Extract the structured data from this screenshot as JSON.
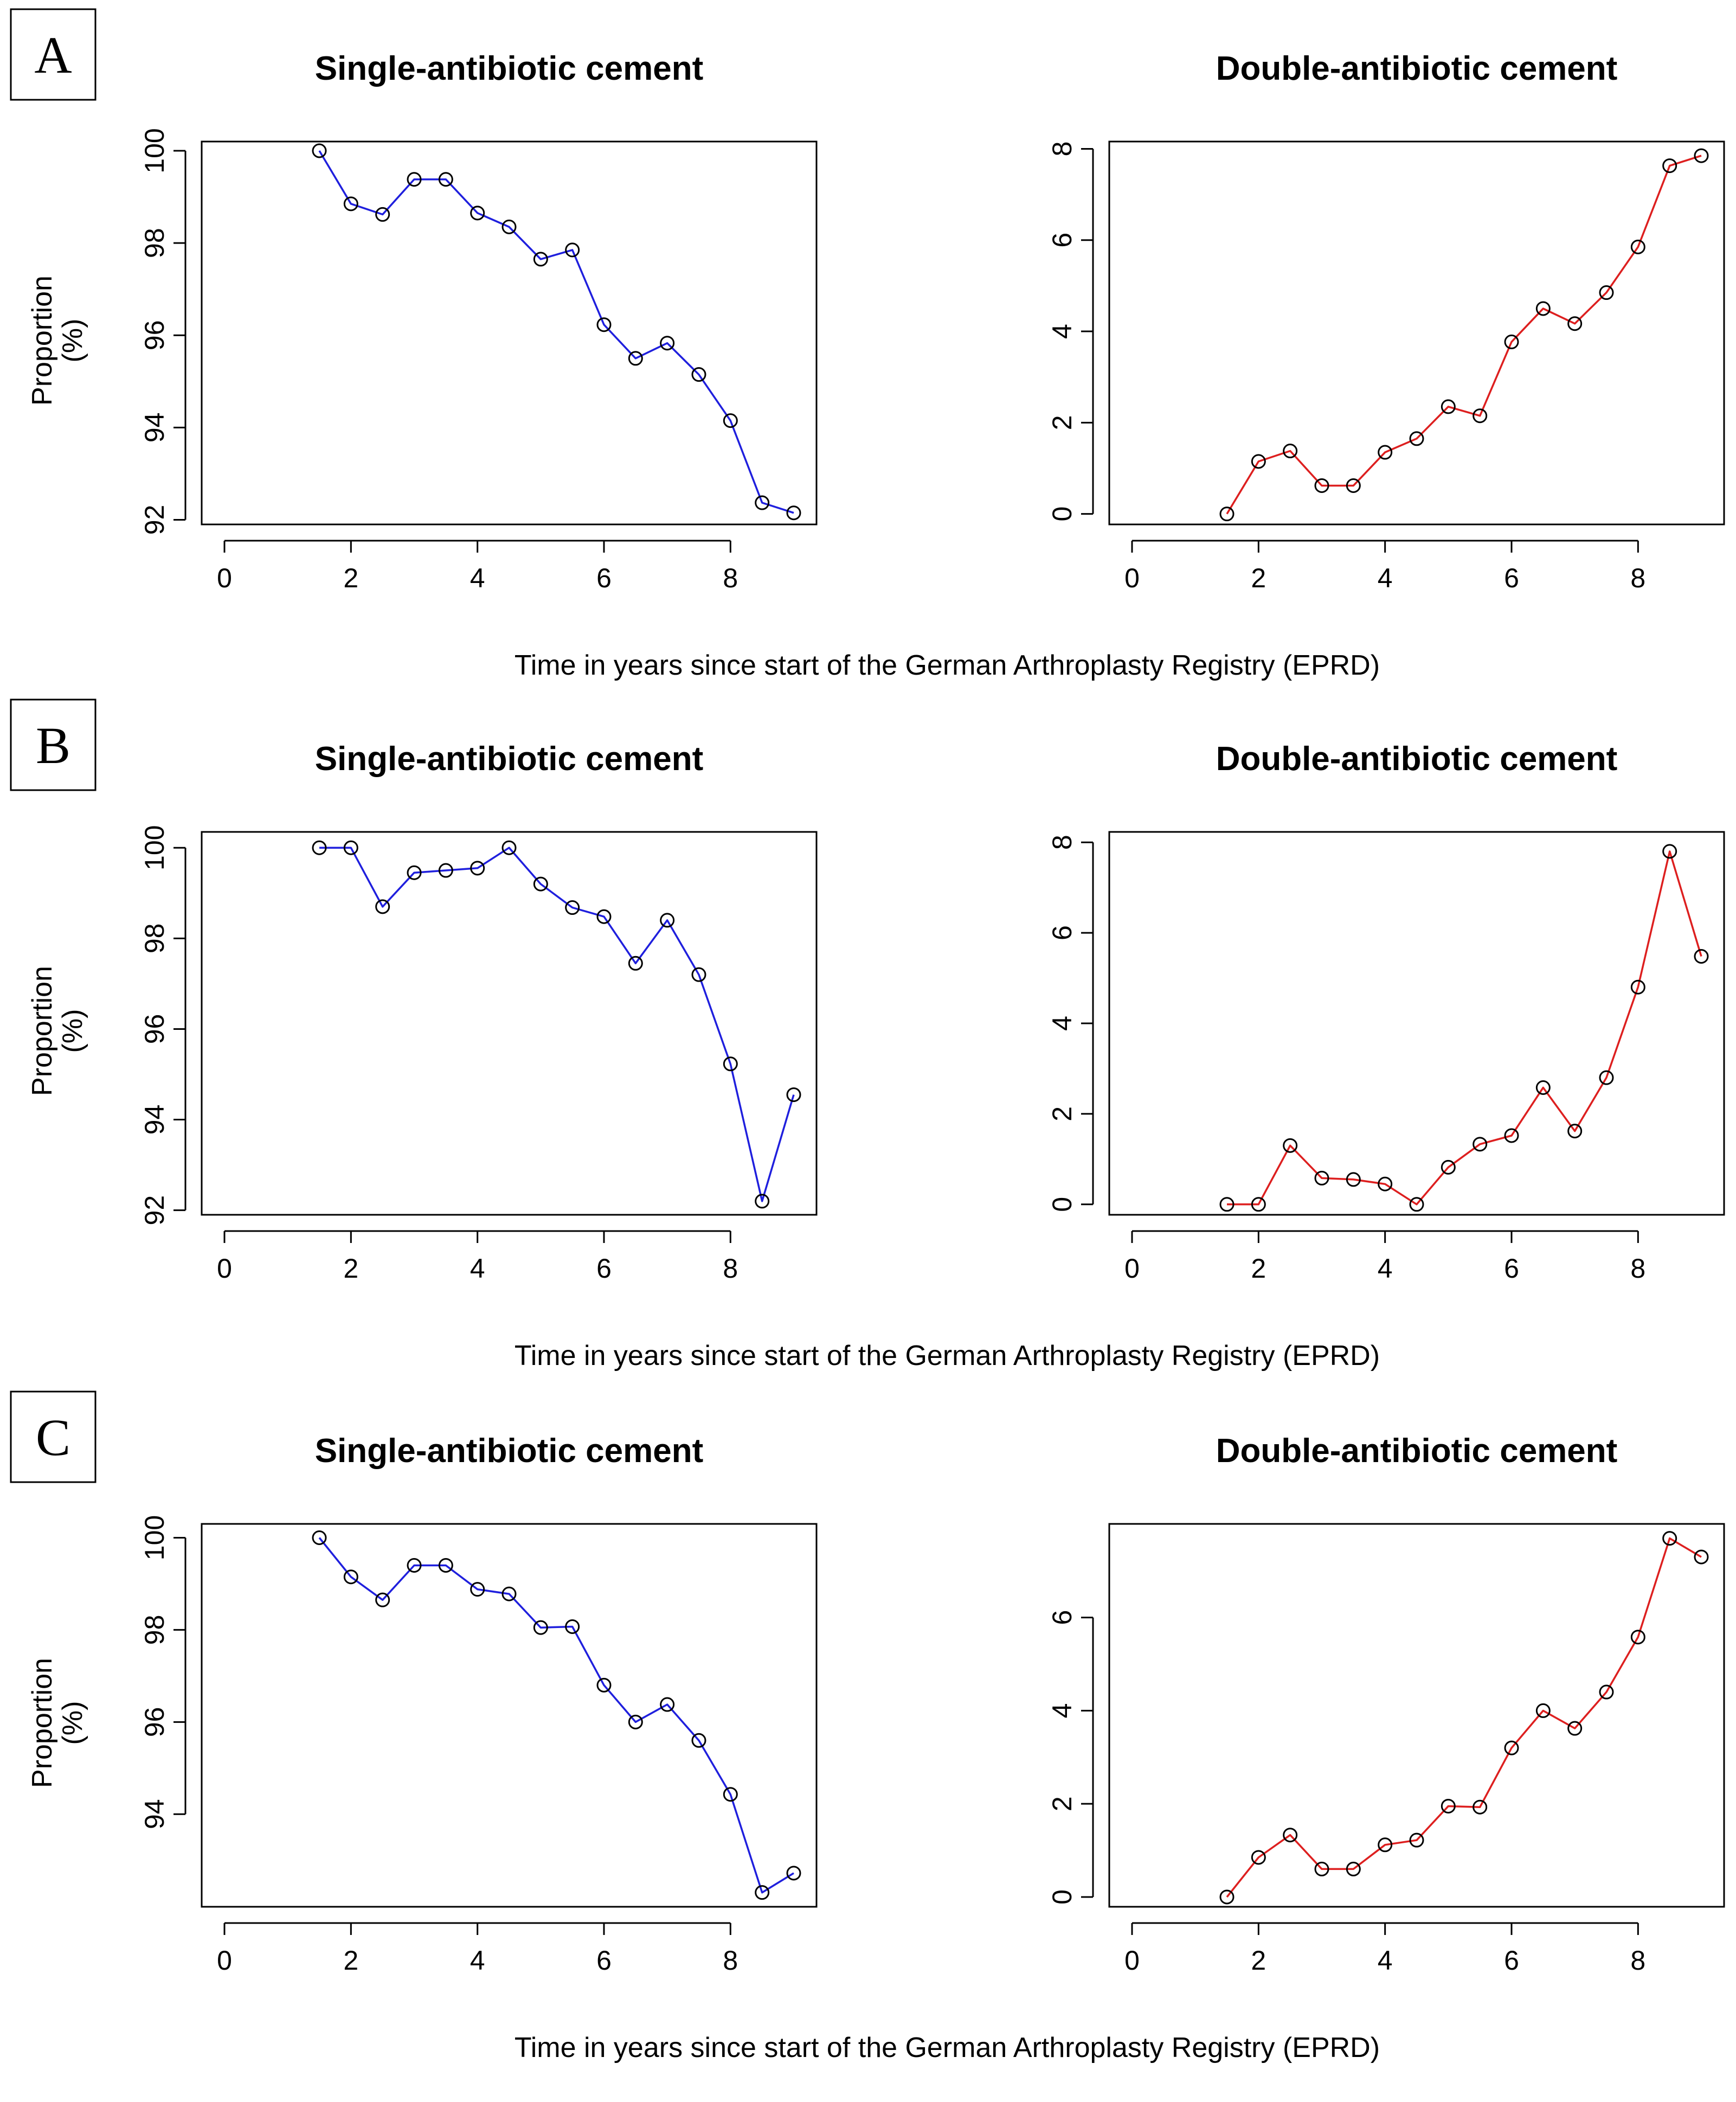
{
  "panels": [
    {
      "letter": "A",
      "xlabel": "Time in years since start of the German Arthroplasty Registry (EPRD)",
      "ylabel_line1": "Proportion",
      "ylabel_line2": "(%)"
    },
    {
      "letter": "B",
      "xlabel": "Time in years since start of the German Arthroplasty Registry (EPRD)",
      "ylabel_line1": "Proportion",
      "ylabel_line2": "(%)"
    },
    {
      "letter": "C",
      "xlabel": "Time in years since start of the German Arthroplasty Registry (EPRD)",
      "ylabel_line1": "Proportion",
      "ylabel_line2": "(%)"
    }
  ],
  "chart_data": [
    {
      "panel": "A",
      "type": "line",
      "title": "Single-antibiotic cement",
      "xlabel": "Time in years since start of the German Arthroplasty Registry (EPRD)",
      "ylabel": "Proportion (%)",
      "color": "#1f1fdd",
      "marker": "open-circle",
      "grid": false,
      "x": [
        1.5,
        2,
        2.5,
        3,
        3.5,
        4,
        4.5,
        5,
        5.5,
        6,
        6.5,
        7,
        7.5,
        8,
        8.5,
        9
      ],
      "y": [
        100.0,
        98.85,
        98.62,
        99.38,
        99.38,
        98.65,
        98.35,
        97.65,
        97.85,
        96.23,
        95.5,
        95.83,
        95.15,
        94.15,
        92.37,
        92.15
      ],
      "xlim": [
        -0.36,
        9.36
      ],
      "ylim": [
        91.9,
        100.2
      ],
      "xticks": [
        0,
        2,
        4,
        6,
        8
      ],
      "yticks": [
        92,
        94,
        96,
        98,
        100
      ]
    },
    {
      "panel": "A",
      "type": "line",
      "title": "Double-antibiotic cement",
      "xlabel": "Time in years since start of the German Arthroplasty Registry (EPRD)",
      "ylabel": "",
      "color": "#dd1f1f",
      "marker": "open-circle",
      "grid": false,
      "x": [
        1.5,
        2,
        2.5,
        3,
        3.5,
        4,
        4.5,
        5,
        5.5,
        6,
        6.5,
        7,
        7.5,
        8,
        8.5,
        9
      ],
      "y": [
        0.0,
        1.15,
        1.38,
        0.62,
        0.62,
        1.35,
        1.65,
        2.35,
        2.15,
        3.77,
        4.5,
        4.17,
        4.85,
        5.85,
        7.63,
        7.85
      ],
      "xlim": [
        -0.36,
        9.36
      ],
      "ylim": [
        -0.23,
        8.16
      ],
      "xticks": [
        0,
        2,
        4,
        6,
        8
      ],
      "yticks": [
        0,
        2,
        4,
        6,
        8
      ]
    },
    {
      "panel": "B",
      "type": "line",
      "title": "Single-antibiotic cement",
      "xlabel": "Time in years since start of the German Arthroplasty Registry (EPRD)",
      "ylabel": "Proportion (%)",
      "color": "#1f1fdd",
      "marker": "open-circle",
      "grid": false,
      "x": [
        1.5,
        2,
        2.5,
        3,
        3.5,
        4,
        4.5,
        5,
        5.5,
        6,
        6.5,
        7,
        7.5,
        8,
        8.5,
        9
      ],
      "y": [
        100.0,
        100.0,
        98.7,
        99.45,
        99.5,
        99.55,
        100.0,
        99.2,
        98.68,
        98.48,
        97.45,
        98.4,
        97.2,
        95.23,
        92.2,
        94.55
      ],
      "xlim": [
        -0.36,
        9.36
      ],
      "ylim": [
        91.9,
        100.35
      ],
      "xticks": [
        0,
        2,
        4,
        6,
        8
      ],
      "yticks": [
        92,
        94,
        96,
        98,
        100
      ]
    },
    {
      "panel": "B",
      "type": "line",
      "title": "Double-antibiotic cement",
      "xlabel": "Time in years since start of the German Arthroplasty Registry (EPRD)",
      "ylabel": "",
      "color": "#dd1f1f",
      "marker": "open-circle",
      "grid": false,
      "x": [
        1.5,
        2,
        2.5,
        3,
        3.5,
        4,
        4.5,
        5,
        5.5,
        6,
        6.5,
        7,
        7.5,
        8,
        8.5,
        9
      ],
      "y": [
        0.0,
        0.0,
        1.3,
        0.58,
        0.55,
        0.45,
        0.0,
        0.82,
        1.33,
        1.52,
        2.58,
        1.62,
        2.8,
        4.8,
        7.8,
        5.48
      ],
      "xlim": [
        -0.36,
        9.36
      ],
      "ylim": [
        -0.23,
        8.23
      ],
      "xticks": [
        0,
        2,
        4,
        6,
        8
      ],
      "yticks": [
        0,
        2,
        4,
        6,
        8
      ]
    },
    {
      "panel": "C",
      "type": "line",
      "title": "Single-antibiotic cement",
      "xlabel": "Time in years since start of the German Arthroplasty Registry (EPRD)",
      "ylabel": "Proportion (%)",
      "color": "#1f1fdd",
      "marker": "open-circle",
      "grid": false,
      "x": [
        1.5,
        2,
        2.5,
        3,
        3.5,
        4,
        4.5,
        5,
        5.5,
        6,
        6.5,
        7,
        7.5,
        8,
        8.5,
        9
      ],
      "y": [
        100.0,
        99.15,
        98.65,
        99.4,
        99.4,
        98.88,
        98.78,
        98.05,
        98.07,
        96.8,
        96.0,
        96.38,
        95.6,
        94.43,
        92.3,
        92.72
      ],
      "xlim": [
        -0.36,
        9.36
      ],
      "ylim": [
        91.99,
        100.3
      ],
      "xticks": [
        0,
        2,
        4,
        6,
        8
      ],
      "yticks": [
        94,
        96,
        98,
        100
      ]
    },
    {
      "panel": "C",
      "type": "line",
      "title": "Double-antibiotic cement",
      "xlabel": "Time in years since start of the German Arthroplasty Registry (EPRD)",
      "ylabel": "",
      "color": "#dd1f1f",
      "marker": "open-circle",
      "grid": false,
      "x": [
        1.5,
        2,
        2.5,
        3,
        3.5,
        4,
        4.5,
        5,
        5.5,
        6,
        6.5,
        7,
        7.5,
        8,
        8.5,
        9
      ],
      "y": [
        0.0,
        0.85,
        1.33,
        0.6,
        0.6,
        1.12,
        1.22,
        1.95,
        1.93,
        3.2,
        4.0,
        3.62,
        4.4,
        5.58,
        7.7,
        7.3
      ],
      "xlim": [
        -0.36,
        9.36
      ],
      "ylim": [
        -0.21,
        8.01
      ],
      "xticks": [
        0,
        2,
        4,
        6,
        8
      ],
      "yticks": [
        0,
        2,
        4,
        6
      ]
    }
  ]
}
